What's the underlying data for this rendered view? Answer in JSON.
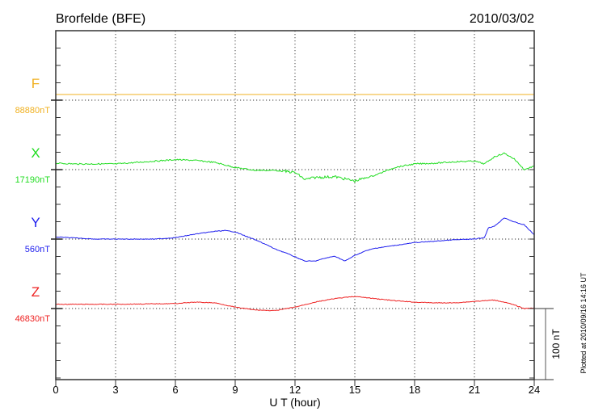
{
  "chart_data": {
    "type": "line",
    "title": "Brorfelde (BFE)",
    "date": "2010/03/02",
    "xlabel": "U T (hour)",
    "xlim": [
      0,
      24
    ],
    "xticks": [
      "0",
      "3",
      "6",
      "9",
      "12",
      "15",
      "18",
      "21",
      "24"
    ],
    "scale_bar_label": "100 nT",
    "footer": "Plotted at 2010/09/16 14:16 UT",
    "grid": true,
    "series": [
      {
        "name": "F",
        "baseline_label": "88880nT",
        "color": "#f0b020",
        "x": [
          0,
          24
        ],
        "values": [
          8,
          8
        ]
      },
      {
        "name": "X",
        "baseline_label": "17190nT",
        "color": "#22dd22",
        "x": [
          0,
          1,
          2,
          3,
          4,
          5,
          6,
          7,
          8,
          9,
          10,
          11,
          12,
          12.5,
          13,
          14,
          15,
          16,
          17,
          18,
          19,
          20,
          21,
          21.5,
          22,
          22.5,
          23,
          23.5,
          24
        ],
        "values": [
          9,
          8,
          8,
          8,
          10,
          12,
          14,
          13,
          10,
          3,
          -1,
          -1,
          -4,
          -14,
          -11,
          -10,
          -16,
          -8,
          3,
          8,
          9,
          11,
          12,
          8,
          18,
          23,
          15,
          0,
          5
        ]
      },
      {
        "name": "Y",
        "baseline_label": "560nT",
        "color": "#2020ee",
        "x": [
          0,
          2,
          5,
          6,
          7,
          8,
          8.5,
          9,
          10,
          10.5,
          11,
          11.5,
          12,
          12.5,
          13,
          13.5,
          14,
          14.5,
          15,
          15.5,
          16,
          17,
          18,
          19,
          20,
          21,
          21.5,
          21.7,
          22,
          22.5,
          23,
          23.5,
          24
        ],
        "values": [
          3,
          0,
          0,
          2,
          7,
          11,
          12,
          10,
          -1,
          -7,
          -14,
          -19,
          -25,
          -31,
          -31,
          -27,
          -24,
          -31,
          -23,
          -17,
          -13,
          -9,
          -5,
          -3,
          -1,
          0,
          2,
          16,
          18,
          30,
          24,
          20,
          6
        ]
      },
      {
        "name": "Z",
        "baseline_label": "46830nT",
        "color": "#ee2020",
        "x": [
          0,
          3,
          6,
          7,
          8,
          9,
          10,
          11,
          12,
          13,
          14,
          15,
          16,
          17,
          18,
          19,
          20,
          21,
          22,
          22.5,
          23,
          23.5,
          24
        ],
        "values": [
          6,
          6,
          7,
          9,
          8,
          2,
          -2,
          -3,
          2,
          9,
          14,
          17,
          14,
          11,
          9,
          8,
          8,
          10,
          12,
          9,
          5,
          0,
          1
        ]
      }
    ]
  }
}
